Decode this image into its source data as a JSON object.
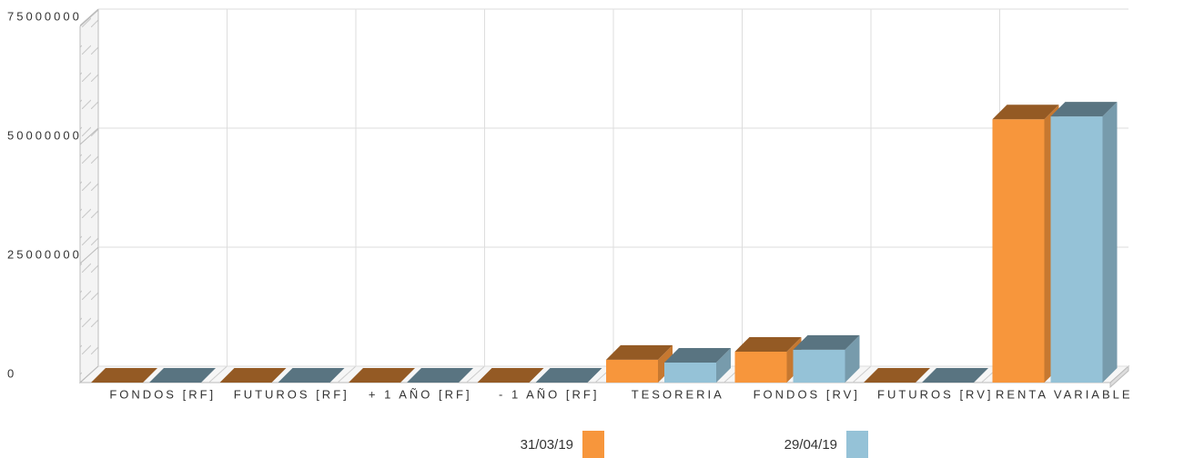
{
  "chart_data": {
    "type": "bar3d",
    "categories": [
      "FONDOS [RF]",
      "FUTUROS [RF]",
      "+ 1 AÑO [RF]",
      "- 1 AÑO [RF]",
      "TESORERIA",
      "FONDOS [RV]",
      "FUTUROS [RV]",
      "RENTA VARIABLE"
    ],
    "series": [
      {
        "name": "31/03/19",
        "color": "#f7963c",
        "values": [
          0,
          0,
          0,
          0,
          4800000,
          6500000,
          0,
          55300000
        ]
      },
      {
        "name": "29/04/19",
        "color": "#95c2d7",
        "values": [
          0,
          0,
          0,
          0,
          4200000,
          6900000,
          0,
          55900000
        ]
      }
    ],
    "ylim": [
      0,
      75000000
    ],
    "yticks": [
      0,
      25000000,
      50000000,
      75000000
    ],
    "grid": true,
    "legend": "bottom"
  }
}
